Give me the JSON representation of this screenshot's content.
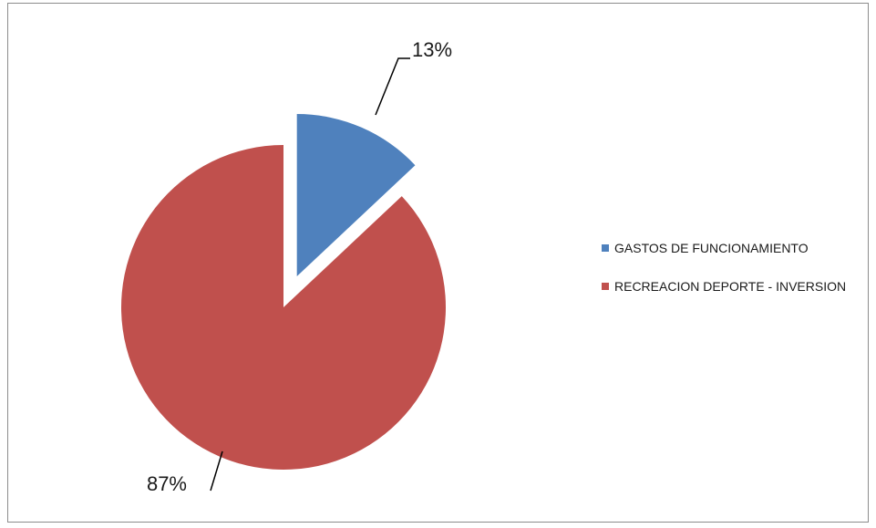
{
  "chart_data": {
    "type": "pie",
    "exploded": true,
    "slices": [
      {
        "label": "GASTOS DE FUNCIONAMIENTO",
        "value": 13,
        "data_label": "13%",
        "color": "#4f81bd"
      },
      {
        "label": "RECREACION DEPORTE - INVERSION",
        "value": 87,
        "data_label": "87%",
        "color": "#c0504d"
      }
    ],
    "legend_position": "right",
    "title": ""
  }
}
